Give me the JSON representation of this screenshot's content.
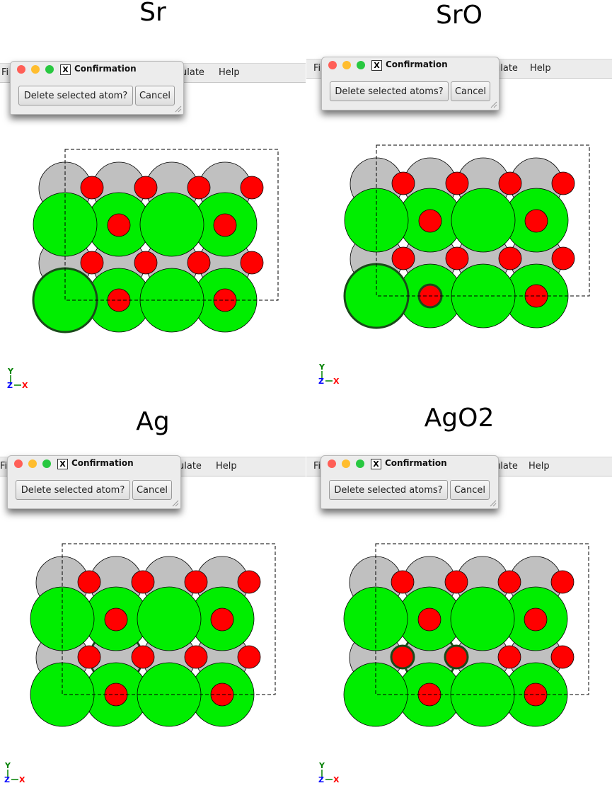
{
  "panels": [
    {
      "title": "Sr",
      "menu": {
        "left": "Fi",
        "calc": "ulate",
        "help": "Help"
      },
      "dialog": {
        "title": "Confirmation",
        "question": "Delete selected atom?",
        "cancel": "Cancel"
      },
      "selected": [
        "sr-0"
      ]
    },
    {
      "title": "SrO",
      "menu": {
        "left": "Fi",
        "calc": "ulate",
        "help": "Help"
      },
      "dialog": {
        "title": "Confirmation",
        "question": "Delete selected atoms?",
        "cancel": "Cancel"
      },
      "selected": [
        "sr-0",
        "o2-0"
      ]
    },
    {
      "title": "Ag",
      "menu": {
        "left": "Fi",
        "calc": "ulate",
        "help": "Help"
      },
      "dialog": {
        "title": "Confirmation",
        "question": "Delete selected atom?",
        "cancel": "Cancel"
      },
      "selected": [
        "ag-1"
      ]
    },
    {
      "title": "AgO2",
      "menu": {
        "left": "Fi",
        "calc": "ulate",
        "help": "Help"
      },
      "dialog": {
        "title": "Confirmation",
        "question": "Delete selected atoms?",
        "cancel": "Cancel"
      },
      "selected": [
        "ag-1",
        "o1-0",
        "o1-1"
      ]
    }
  ],
  "axes": {
    "y": "Y",
    "z": "Z",
    "x": "X"
  },
  "colors": {
    "sr": "#00ee00",
    "ag": "#c0c0c0",
    "oxygen": "#ff0000",
    "menubar": "#ececec",
    "close": "#ff5f57",
    "minimize": "#ffbd2e",
    "maximize": "#28c840",
    "y_axis": "#008000",
    "z_axis": "#0000ff",
    "x_axis": "#ff0000"
  }
}
